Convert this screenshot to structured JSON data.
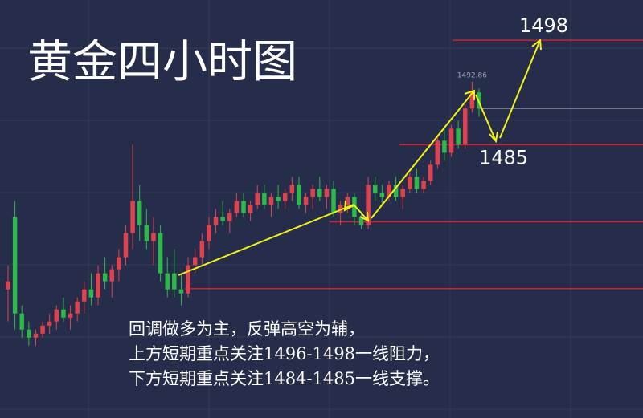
{
  "chart_data": {
    "type": "candlestick",
    "title": "黄金四小时图",
    "annotations": [
      "回调做多为主，反弹高空为辅，",
      "上方短期重点关注1496-1498一线阻力，",
      "下方短期重点关注1484-1485一线支撑。"
    ],
    "ylim": [
      1451,
      1503
    ],
    "up_color": "#e0414f",
    "down_color": "#2db84a",
    "levels": [
      {
        "value": 1498,
        "color": "#d81e28"
      },
      {
        "value": 1485,
        "color": "#d81e28"
      },
      {
        "value": 1475.4,
        "color": "#d81e28"
      },
      {
        "value": 1467.1,
        "color": "#d81e28"
      }
    ],
    "open": [
      1467,
      1476,
      1464,
      1462,
      1461,
      1461.5,
      1462.5,
      1463,
      1464.5,
      1463.5,
      1464,
      1465.5,
      1467,
      1466,
      1469,
      1468,
      1469.5,
      1471,
      1474,
      1478,
      1475,
      1473,
      1474,
      1469,
      1469,
      1467,
      1466.5,
      1470,
      1471,
      1473,
      1475,
      1476,
      1475.5,
      1476.5,
      1478,
      1476.5,
      1477.5,
      1479,
      1477.5,
      1478.5,
      1478,
      1479,
      1480,
      1477.5,
      1478.5,
      1479.5,
      1478.5,
      1479.5,
      1476.5,
      1477.5,
      1478.5,
      1476,
      1475,
      1480,
      1479,
      1478.5,
      1480,
      1478.5,
      1479.5,
      1481,
      1479.5,
      1480.5,
      1482.5,
      1485.5,
      1484,
      1487,
      1485,
      1489.5,
      1491.5
    ],
    "high": [
      1470,
      1478,
      1465,
      1463,
      1462,
      1463,
      1464,
      1465,
      1466,
      1465,
      1466,
      1468,
      1469,
      1470,
      1471,
      1470,
      1472,
      1475,
      1485,
      1480,
      1477,
      1476,
      1475,
      1471,
      1472,
      1469,
      1471,
      1472,
      1474,
      1476,
      1477,
      1478,
      1477,
      1479,
      1479,
      1478,
      1480,
      1480,
      1479,
      1480,
      1479.5,
      1481,
      1481,
      1479,
      1480,
      1481,
      1480,
      1480.5,
      1478,
      1479,
      1479,
      1476.5,
      1481,
      1481,
      1480,
      1480.5,
      1481,
      1480,
      1481.5,
      1482,
      1481,
      1483,
      1486,
      1487,
      1487.5,
      1488,
      1490,
      1492.86,
      1492
    ],
    "low": [
      1463,
      1462,
      1461,
      1460,
      1460,
      1461,
      1461.5,
      1462,
      1463,
      1462,
      1463,
      1464,
      1465,
      1465,
      1467,
      1466,
      1468,
      1470,
      1472,
      1473,
      1472,
      1470,
      1468,
      1466,
      1466,
      1465,
      1466,
      1469,
      1470,
      1472,
      1474,
      1475,
      1474,
      1476,
      1476,
      1475.5,
      1477,
      1477,
      1476,
      1477,
      1477,
      1478,
      1477,
      1476.5,
      1477,
      1478,
      1477,
      1476,
      1475,
      1476.5,
      1475,
      1474.5,
      1474.5,
      1478,
      1477.5,
      1478,
      1478,
      1477,
      1479,
      1479,
      1479,
      1480,
      1482,
      1483,
      1483.5,
      1484.5,
      1484.5,
      1489,
      1488.5
    ],
    "close": [
      1468,
      1464,
      1462,
      1461,
      1461.5,
      1462.5,
      1463,
      1464.5,
      1463.5,
      1464,
      1465.5,
      1467,
      1466,
      1469,
      1468,
      1469.5,
      1471,
      1474,
      1478,
      1475,
      1473,
      1474,
      1469,
      1467,
      1467,
      1466.5,
      1470,
      1471,
      1473,
      1475,
      1476,
      1475.5,
      1476.5,
      1478,
      1476.5,
      1477.5,
      1479,
      1477.5,
      1478.5,
      1478,
      1479,
      1480,
      1477.5,
      1478.5,
      1479.5,
      1478.5,
      1479.5,
      1476.5,
      1477.5,
      1478.5,
      1476,
      1475,
      1480,
      1479,
      1478.5,
      1480,
      1478.5,
      1479.5,
      1481,
      1479.5,
      1480.5,
      1482.5,
      1485.5,
      1484,
      1487,
      1485,
      1489.5,
      1491.5,
      1489.5
    ]
  }
}
